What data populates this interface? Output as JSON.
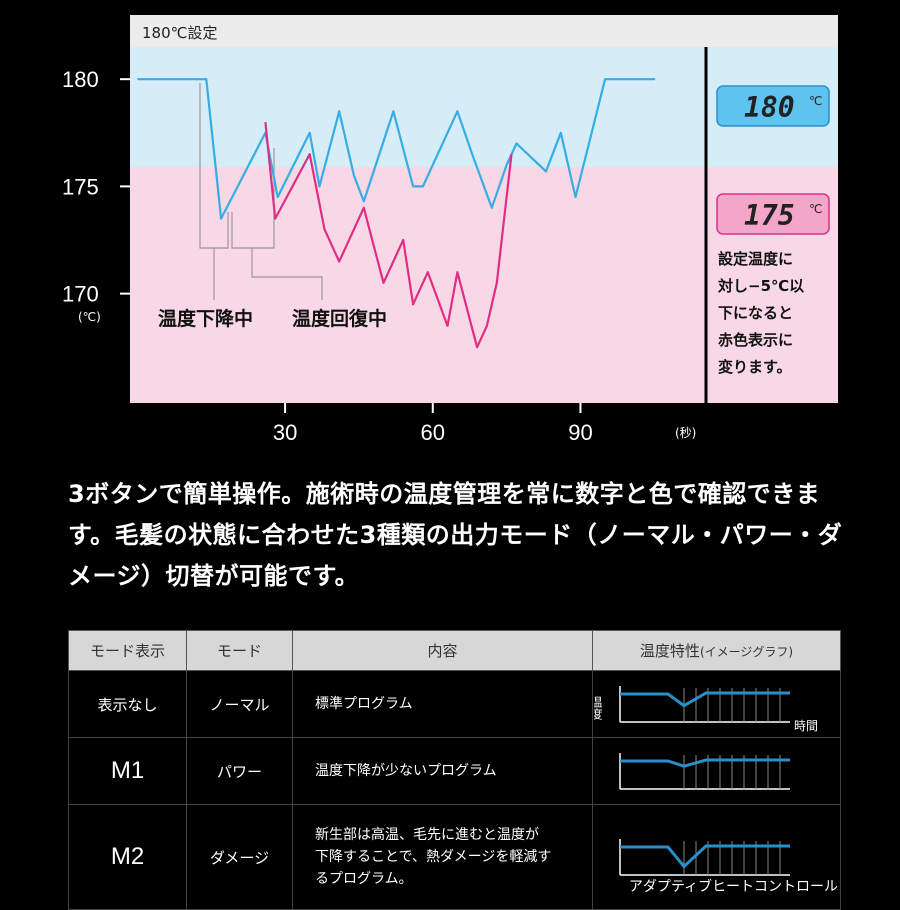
{
  "chart_data": {
    "type": "line",
    "header_label": "180℃設定",
    "y_unit": "(℃)",
    "x_unit": "(秒)",
    "yticks": [
      180,
      175,
      170
    ],
    "xticks": [
      30,
      60,
      90
    ],
    "xlim": [
      -1.5,
      115.5
    ],
    "ylim": [
      164.9,
      181.5
    ],
    "band_threshold": 175,
    "band_colors": {
      "upper": "#d6ecf7",
      "lower": "#f9d8e6",
      "header": "#ececec"
    },
    "series": [
      {
        "color": "#34aee4",
        "x": [
          0,
          14,
          17,
          26,
          28.5,
          35,
          37,
          41,
          44,
          46,
          52,
          56,
          58,
          65,
          68,
          72,
          75,
          77,
          83,
          86,
          89,
          95,
          97,
          105,
          100
        ],
        "y": [
          180,
          180,
          173.5,
          177.5,
          174.5,
          177.5,
          175,
          178.5,
          175.5,
          174.3,
          178.5,
          175,
          175,
          178.5,
          176.5,
          174,
          176,
          177,
          175.7,
          177.5,
          174.5,
          180,
          180,
          180,
          180
        ]
      },
      {
        "color": "#e02d86",
        "x": [
          26,
          28,
          35,
          38,
          41,
          46,
          50,
          54,
          56,
          59,
          63,
          65,
          69,
          71,
          73,
          76
        ],
        "y": [
          178,
          173.5,
          176.5,
          173,
          171.5,
          174,
          170.5,
          172.5,
          169.5,
          171,
          168.5,
          171,
          167.5,
          168.5,
          170.5,
          176.5
        ]
      }
    ],
    "annotations": [
      "温度下降中",
      "温度回復中"
    ],
    "lcd_readouts": [
      {
        "value": "180",
        "unit": "℃"
      },
      {
        "value": "175",
        "unit": "℃"
      }
    ],
    "side_note": [
      "設定温度に",
      "対し−5℃以",
      "下になると",
      "赤色表示に",
      "変ります。"
    ]
  },
  "description": "3ボタンで簡単操作。施術時の温度管理を常に数字と色で確認できます。毛髪の状態に合わせた3種類の出力モード（ノーマル・パワー・ダメージ）切替が可能です。",
  "table": {
    "headers": [
      "モード表示",
      "モード",
      "内容",
      "温度特性"
    ],
    "header_sub": "(イメージグラフ)",
    "rows": [
      {
        "display": "表示なし",
        "mode": "ノーマル",
        "content": "標準プログラム",
        "dip": 0.45
      },
      {
        "display": "M1",
        "mode": "パワー",
        "content": "温度下降が少ないプログラム",
        "dip": 0.2
      },
      {
        "display": "M2",
        "mode": "ダメージ",
        "content": "新生部は高温、毛先に進むと温度が下降することで、熱ダメージを軽減するプログラム。",
        "dip": 0.75
      }
    ],
    "graph_y_label": "温度",
    "graph_x_label": "時間",
    "line_color": "#2a8fc9"
  },
  "footer": "アダプティブヒートコントロール"
}
